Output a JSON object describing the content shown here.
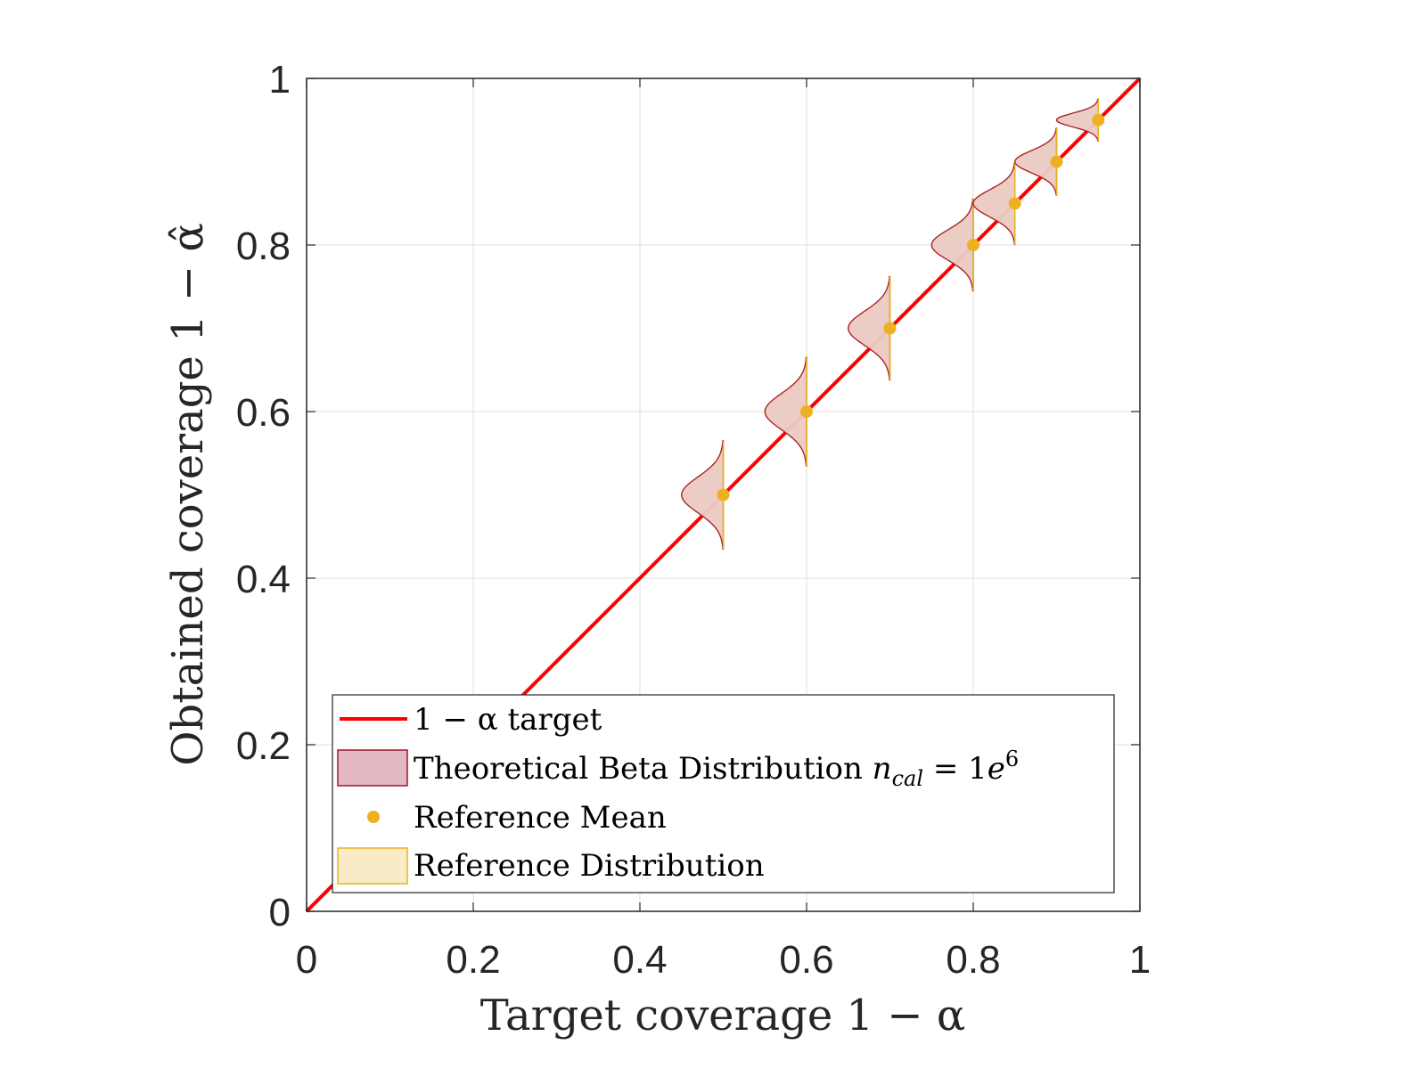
{
  "chart_data": {
    "type": "scatter",
    "xlabel": "Target coverage 1 − α",
    "ylabel": "Obtained coverage 1 − α̂",
    "xlim": [
      0,
      1
    ],
    "ylim": [
      0,
      1
    ],
    "xticks": [
      "0",
      "0.2",
      "0.4",
      "0.6",
      "0.8",
      "1"
    ],
    "yticks": [
      "0",
      "0.2",
      "0.4",
      "0.6",
      "0.8",
      "1"
    ],
    "grid": true,
    "legend_position": "bottom",
    "reference_line": {
      "name": "1 − α target",
      "x": [
        0,
        1
      ],
      "y": [
        0,
        1
      ],
      "color": "#ff0000"
    },
    "distributions": [
      {
        "target": 0.5,
        "mean": 0.5,
        "range": [
          0.435,
          0.565
        ]
      },
      {
        "target": 0.6,
        "mean": 0.6,
        "range": [
          0.535,
          0.665
        ]
      },
      {
        "target": 0.7,
        "mean": 0.7,
        "range": [
          0.638,
          0.762
        ]
      },
      {
        "target": 0.8,
        "mean": 0.8,
        "range": [
          0.745,
          0.855
        ]
      },
      {
        "target": 0.85,
        "mean": 0.85,
        "range": [
          0.801,
          0.899
        ]
      },
      {
        "target": 0.9,
        "mean": 0.9,
        "range": [
          0.86,
          0.94
        ]
      },
      {
        "target": 0.95,
        "mean": 0.95,
        "range": [
          0.925,
          0.975
        ]
      }
    ],
    "series": [
      {
        "name": "Theoretical Beta Distribution",
        "color": "#a2142f",
        "fill": "#e3b8c2"
      },
      {
        "name": "Reference Mean",
        "color": "#edb120"
      },
      {
        "name": "Reference Distribution",
        "color": "#edb120",
        "fill": "#f9ebc8"
      }
    ],
    "legend": {
      "target": "1 − α target",
      "beta_prefix": "Theoretical Beta Distribution ",
      "beta_n": "n",
      "beta_sub": "cal",
      "beta_eq": " = 1",
      "beta_e": "e",
      "beta_sup": "6",
      "mean": "Reference Mean",
      "reference": "Reference Distribution"
    }
  }
}
